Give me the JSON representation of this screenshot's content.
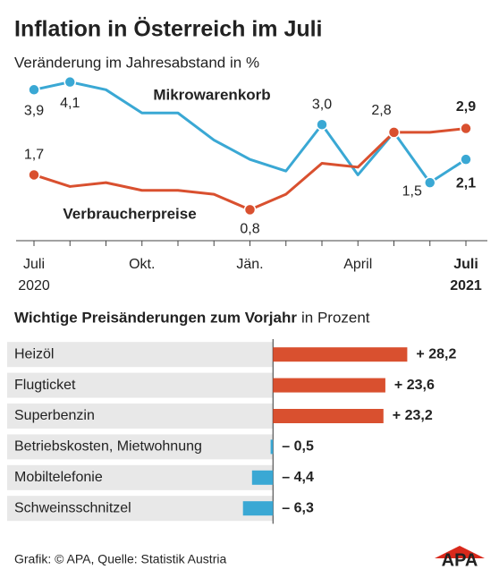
{
  "chart_data": [
    {
      "type": "line",
      "title": "Inflation in Österreich im Juli",
      "subtitle": "Veränderung im Jahresabstand in %",
      "categories": [
        "Juli 2020",
        null,
        null,
        "Okt.",
        null,
        null,
        "Jän.",
        null,
        null,
        "April",
        null,
        null,
        "Juli 2021"
      ],
      "ylim": [
        0,
        4.3
      ],
      "series": [
        {
          "name": "Mikrowarenkorb",
          "color": "#3aa8d4",
          "values": [
            3.9,
            4.1,
            3.9,
            3.3,
            3.3,
            2.6,
            2.1,
            1.8,
            3.0,
            1.7,
            2.8,
            1.5,
            2.1
          ],
          "value_labels": [
            "3,9",
            "4,1",
            null,
            null,
            null,
            null,
            null,
            null,
            "3,0",
            null,
            null,
            "1,5",
            "2,1"
          ]
        },
        {
          "name": "Verbraucherpreise",
          "color": "#d9502f",
          "values": [
            1.7,
            1.4,
            1.5,
            1.3,
            1.3,
            1.2,
            0.8,
            1.2,
            2.0,
            1.9,
            2.8,
            2.8,
            2.9
          ],
          "value_labels": [
            "1,7",
            null,
            null,
            null,
            null,
            null,
            "0,8",
            null,
            null,
            null,
            "2,8",
            null,
            "2,9"
          ]
        }
      ]
    },
    {
      "type": "hbar",
      "title": "Wichtige Preisänderungen zum Vorjahr",
      "unit": "in Prozent",
      "categories": [
        "Heizöl",
        "Flugticket",
        "Superbenzin",
        "Betriebskosten, Mietwohnung",
        "Mobiltelefonie",
        "Schweinsschnitzel"
      ],
      "values": [
        28.2,
        23.6,
        23.2,
        -0.5,
        -4.4,
        -6.3
      ],
      "value_labels": [
        "+ 28,2",
        "+ 23,6",
        "+ 23,2",
        "– 0,5",
        "– 4,4",
        "– 6,3"
      ],
      "colors": [
        "#d9502f",
        "#d9502f",
        "#d9502f",
        "#3aa8d4",
        "#3aa8d4",
        "#3aa8d4"
      ],
      "xlim": [
        -10,
        30
      ]
    }
  ],
  "footer": {
    "source": "Grafik: © APA, Quelle: Statistik Austria",
    "logo": "APA"
  }
}
